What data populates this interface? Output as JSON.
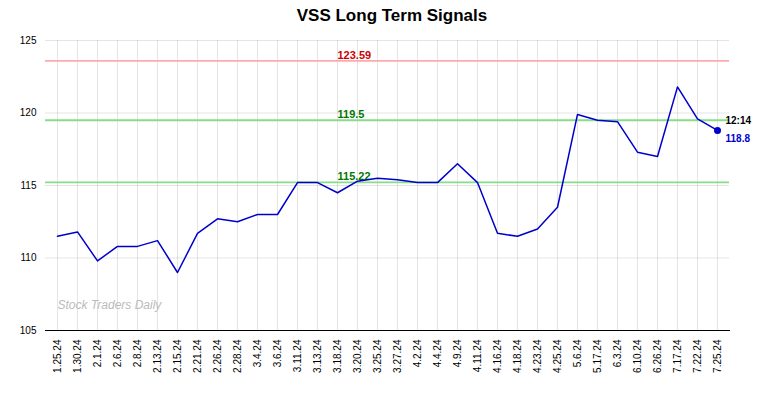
{
  "chart_data": {
    "type": "line",
    "title": "VSS Long Term Signals",
    "categories": [
      "1.25.24",
      "1.30.24",
      "2.1.24",
      "2.6.24",
      "2.8.24",
      "2.13.24",
      "2.15.24",
      "2.21.24",
      "2.26.24",
      "2.28.24",
      "3.4.24",
      "3.6.24",
      "3.11.24",
      "3.13.24",
      "3.18.24",
      "3.20.24",
      "3.25.24",
      "3.27.24",
      "4.2.24",
      "4.4.24",
      "4.9.24",
      "4.11.24",
      "4.16.24",
      "4.18.24",
      "4.23.24",
      "4.25.24",
      "5.6.24",
      "5.17.24",
      "6.3.24",
      "6.10.24",
      "6.26.24",
      "7.17.24",
      "7.22.24",
      "7.25.24"
    ],
    "values": [
      111.5,
      111.8,
      109.8,
      110.8,
      110.8,
      111.2,
      109.0,
      111.7,
      112.7,
      112.5,
      113.0,
      113.0,
      115.2,
      115.2,
      114.5,
      115.3,
      115.5,
      115.4,
      115.2,
      115.2,
      116.5,
      115.2,
      111.7,
      111.5,
      112.0,
      113.5,
      119.9,
      119.5,
      119.4,
      117.3,
      117.0,
      121.8,
      119.6,
      118.8
    ],
    "color": "#0000CC",
    "ylim": [
      105,
      125
    ],
    "yticks": [
      105,
      110,
      115,
      120,
      125
    ],
    "grid": true,
    "reference_lines": [
      {
        "value": 123.59,
        "label": "123.59",
        "color": "#ffaaaa",
        "label_color": "#cc0000"
      },
      {
        "value": 119.5,
        "label": "119.5",
        "color": "#88dd88",
        "label_color": "#007700"
      },
      {
        "value": 115.22,
        "label": "115.22",
        "color": "#88dd88",
        "label_color": "#007700"
      }
    ],
    "end_point": {
      "value": 118.8,
      "label": "118.8",
      "time_label": "12:14"
    },
    "watermark": {
      "text": "Stock Traders Daily",
      "color": "#bbbbbb"
    }
  }
}
